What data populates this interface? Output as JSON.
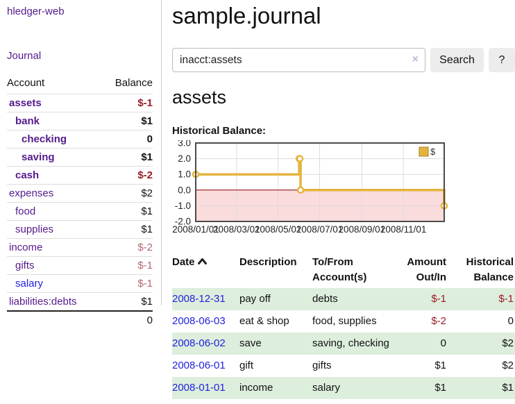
{
  "app": {
    "brand": "hledger-web",
    "nav_journal": "Journal"
  },
  "header": {
    "title": "sample.journal"
  },
  "search": {
    "value": "inacct:assets",
    "clear_label": "×",
    "button": "Search",
    "help_button": "?"
  },
  "account_page": {
    "heading": "assets",
    "chart_label": "Historical Balance:"
  },
  "sidebar": {
    "accounts_header": {
      "account": "Account",
      "balance": "Balance"
    },
    "accounts": [
      {
        "name": "assets",
        "depth": 1,
        "bold": true,
        "balance": "$-1",
        "balance_style": "neg-strong"
      },
      {
        "name": "bank",
        "depth": 2,
        "bold": true,
        "balance": "$1",
        "balance_style": "pos"
      },
      {
        "name": "checking",
        "depth": 3,
        "bold": true,
        "balance": "0",
        "balance_style": "pos"
      },
      {
        "name": "saving",
        "depth": 3,
        "bold": true,
        "balance": "$1",
        "balance_style": "pos"
      },
      {
        "name": "cash",
        "depth": 2,
        "bold": true,
        "balance": "$-2",
        "balance_style": "neg-strong"
      },
      {
        "name": "expenses",
        "depth": 1,
        "bold": false,
        "balance": "$2",
        "balance_style": "pos"
      },
      {
        "name": "food",
        "depth": 2,
        "bold": false,
        "balance": "$1",
        "balance_style": "pos"
      },
      {
        "name": "supplies",
        "depth": 2,
        "bold": false,
        "balance": "$1",
        "balance_style": "pos"
      },
      {
        "name": "income",
        "depth": 1,
        "bold": false,
        "balance": "$-2",
        "balance_style": "neg"
      },
      {
        "name": "gifts",
        "depth": 2,
        "bold": false,
        "balance": "$-1",
        "balance_style": "neg"
      },
      {
        "name": "salary",
        "depth": 2,
        "bold": false,
        "balance": "$-1",
        "balance_style": "neg",
        "link_color": "blue"
      },
      {
        "name": "liabilities:debts",
        "depth": 1,
        "bold": false,
        "balance": "$1",
        "balance_style": "pos"
      }
    ],
    "total": "0"
  },
  "chart_data": {
    "type": "line",
    "step": true,
    "title": "Historical Balance:",
    "legend": "$",
    "legend_position": "top-right",
    "x_domain": [
      "2008-01-01",
      "2008-12-31"
    ],
    "ylim": [
      -2,
      3
    ],
    "y_ticks": [
      3.0,
      2.0,
      1.0,
      0.0,
      -1.0,
      -2.0
    ],
    "x_ticks": [
      {
        "date": "2008-01-01",
        "label": "2008/01/01"
      },
      {
        "date": "2008-03-01",
        "label": "2008/03/01"
      },
      {
        "date": "2008-05-01",
        "label": "2008/05/01"
      },
      {
        "date": "2008-07-01",
        "label": "2008/07/01"
      },
      {
        "date": "2008-09-01",
        "label": "2008/09/01"
      },
      {
        "date": "2008-11-01",
        "label": "2008/11/01"
      }
    ],
    "series": [
      {
        "name": "$",
        "color": "#e4b43d",
        "points": [
          [
            "2008-01-01",
            1
          ],
          [
            "2008-06-01",
            2
          ],
          [
            "2008-06-02",
            2
          ],
          [
            "2008-06-03",
            0
          ],
          [
            "2008-12-31",
            -1
          ]
        ]
      }
    ],
    "negative_region_color": "#fbdcdc",
    "zero_line_color": "#8b0000",
    "grid": true
  },
  "register": {
    "columns": [
      {
        "l1": "Date",
        "l2": "",
        "sorted_asc": true
      },
      {
        "l1": "Description",
        "l2": ""
      },
      {
        "l1": "To/From",
        "l2": "Account(s)"
      },
      {
        "l1": "Amount",
        "l2": "Out/In"
      },
      {
        "l1": "Historical",
        "l2": "Balance"
      }
    ],
    "rows": [
      {
        "date": "2008-12-31",
        "description": "pay off",
        "accounts": "debts",
        "amount": "$-1",
        "amount_neg": true,
        "balance": "$-1",
        "balance_neg": true
      },
      {
        "date": "2008-06-03",
        "description": "eat & shop",
        "accounts": "food, supplies",
        "amount": "$-2",
        "amount_neg": true,
        "balance": "0",
        "balance_neg": false
      },
      {
        "date": "2008-06-02",
        "description": "save",
        "accounts": "saving, checking",
        "amount": "0",
        "amount_neg": false,
        "balance": "$2",
        "balance_neg": false
      },
      {
        "date": "2008-06-01",
        "description": "gift",
        "accounts": "gifts",
        "amount": "$1",
        "amount_neg": false,
        "balance": "$2",
        "balance_neg": false
      },
      {
        "date": "2008-01-01",
        "description": "income",
        "accounts": "salary",
        "amount": "$1",
        "amount_neg": false,
        "balance": "$1",
        "balance_neg": false
      }
    ]
  },
  "colors": {
    "link_purple": "#551a8b",
    "link_blue": "#2222dd",
    "negative_strong": "#9d1b25",
    "negative_soft": "#b26771",
    "row_green": "#ddeedd",
    "button_bg": "#ececec",
    "divider": "#cccccc"
  }
}
